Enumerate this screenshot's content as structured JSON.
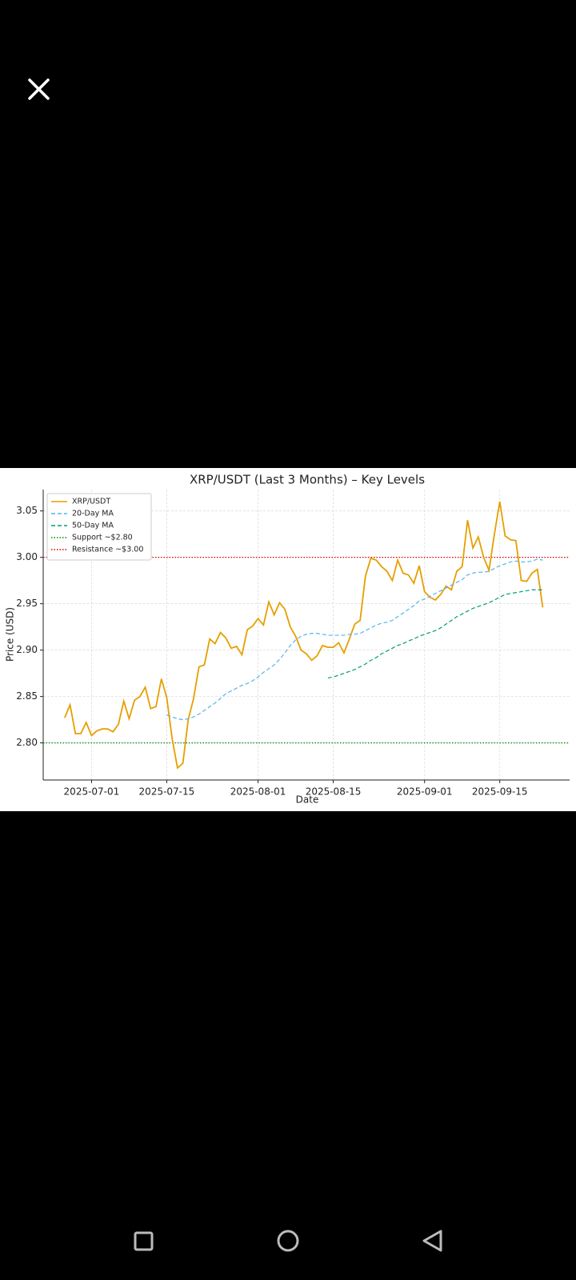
{
  "chart_data": {
    "type": "line",
    "title": "XRP/USDT (Last 3 Months) – Key Levels",
    "xlabel": "Date",
    "ylabel": "Price (USD)",
    "x": [
      "2025-06-26",
      "2025-06-27",
      "2025-06-28",
      "2025-06-29",
      "2025-06-30",
      "2025-07-01",
      "2025-07-02",
      "2025-07-03",
      "2025-07-04",
      "2025-07-05",
      "2025-07-06",
      "2025-07-07",
      "2025-07-08",
      "2025-07-09",
      "2025-07-10",
      "2025-07-11",
      "2025-07-12",
      "2025-07-13",
      "2025-07-14",
      "2025-07-15",
      "2025-07-16",
      "2025-07-17",
      "2025-07-18",
      "2025-07-19",
      "2025-07-20",
      "2025-07-21",
      "2025-07-22",
      "2025-07-23",
      "2025-07-24",
      "2025-07-25",
      "2025-07-26",
      "2025-07-27",
      "2025-07-28",
      "2025-07-29",
      "2025-07-30",
      "2025-07-31",
      "2025-08-01",
      "2025-08-02",
      "2025-08-03",
      "2025-08-04",
      "2025-08-05",
      "2025-08-06",
      "2025-08-07",
      "2025-08-08",
      "2025-08-09",
      "2025-08-10",
      "2025-08-11",
      "2025-08-12",
      "2025-08-13",
      "2025-08-14",
      "2025-08-15",
      "2025-08-16",
      "2025-08-17",
      "2025-08-18",
      "2025-08-19",
      "2025-08-20",
      "2025-08-21",
      "2025-08-22",
      "2025-08-23",
      "2025-08-24",
      "2025-08-25",
      "2025-08-26",
      "2025-08-27",
      "2025-08-28",
      "2025-08-29",
      "2025-08-30",
      "2025-08-31",
      "2025-09-01",
      "2025-09-02",
      "2025-09-03",
      "2025-09-04",
      "2025-09-05",
      "2025-09-06",
      "2025-09-07",
      "2025-09-08",
      "2025-09-09",
      "2025-09-10",
      "2025-09-11",
      "2025-09-12",
      "2025-09-13",
      "2025-09-14",
      "2025-09-15",
      "2025-09-16",
      "2025-09-17",
      "2025-09-18",
      "2025-09-19",
      "2025-09-20",
      "2025-09-21",
      "2025-09-22",
      "2025-09-23"
    ],
    "series": [
      {
        "name": "XRP/USDT",
        "color": "#e69f00",
        "dash": "solid",
        "values": [
          2.827,
          2.841,
          2.81,
          2.81,
          2.822,
          2.808,
          2.813,
          2.815,
          2.815,
          2.812,
          2.82,
          2.845,
          2.826,
          2.846,
          2.85,
          2.86,
          2.837,
          2.839,
          2.869,
          2.849,
          2.805,
          2.773,
          2.778,
          2.825,
          2.848,
          2.882,
          2.884,
          2.912,
          2.907,
          2.919,
          2.913,
          2.902,
          2.904,
          2.895,
          2.922,
          2.926,
          2.934,
          2.927,
          2.952,
          2.938,
          2.951,
          2.944,
          2.925,
          2.915,
          2.9,
          2.896,
          2.889,
          2.894,
          2.905,
          2.903,
          2.903,
          2.908,
          2.897,
          2.912,
          2.928,
          2.932,
          2.98,
          2.999,
          2.997,
          2.99,
          2.985,
          2.975,
          2.997,
          2.983,
          2.981,
          2.972,
          2.991,
          2.963,
          2.957,
          2.954,
          2.96,
          2.969,
          2.965,
          2.985,
          2.99,
          3.04,
          3.01,
          3.022,
          3.0,
          2.986,
          3.025,
          3.06,
          3.023,
          3.019,
          3.018,
          2.975,
          2.974,
          2.983,
          2.987,
          2.946
        ]
      },
      {
        "name": "20-Day MA",
        "color": "#56b4e9",
        "dash": "dashed",
        "values": [
          null,
          null,
          null,
          null,
          null,
          null,
          null,
          null,
          null,
          null,
          null,
          null,
          null,
          null,
          null,
          null,
          null,
          null,
          null,
          2.83,
          2.828,
          2.826,
          2.825,
          2.826,
          2.828,
          2.831,
          2.835,
          2.839,
          2.843,
          2.848,
          2.853,
          2.856,
          2.859,
          2.862,
          2.864,
          2.867,
          2.871,
          2.876,
          2.88,
          2.884,
          2.89,
          2.897,
          2.905,
          2.911,
          2.915,
          2.917,
          2.918,
          2.918,
          2.917,
          2.916,
          2.916,
          2.916,
          2.916,
          2.917,
          2.917,
          2.918,
          2.921,
          2.924,
          2.927,
          2.929,
          2.93,
          2.932,
          2.936,
          2.94,
          2.944,
          2.948,
          2.953,
          2.955,
          2.958,
          2.961,
          2.964,
          2.967,
          2.97,
          2.973,
          2.976,
          2.981,
          2.983,
          2.984,
          2.984,
          2.985,
          2.988,
          2.991,
          2.993,
          2.995,
          2.996,
          2.995,
          2.995,
          2.996,
          2.998,
          2.997
        ]
      },
      {
        "name": "50-Day MA",
        "color": "#009e73",
        "dash": "dashed",
        "values": [
          null,
          null,
          null,
          null,
          null,
          null,
          null,
          null,
          null,
          null,
          null,
          null,
          null,
          null,
          null,
          null,
          null,
          null,
          null,
          null,
          null,
          null,
          null,
          null,
          null,
          null,
          null,
          null,
          null,
          null,
          null,
          null,
          null,
          null,
          null,
          null,
          null,
          null,
          null,
          null,
          null,
          null,
          null,
          null,
          null,
          null,
          null,
          null,
          null,
          2.87,
          2.871,
          2.873,
          2.875,
          2.877,
          2.879,
          2.882,
          2.885,
          2.889,
          2.892,
          2.896,
          2.899,
          2.902,
          2.905,
          2.907,
          2.91,
          2.912,
          2.915,
          2.917,
          2.919,
          2.921,
          2.924,
          2.928,
          2.932,
          2.936,
          2.939,
          2.942,
          2.945,
          2.947,
          2.949,
          2.951,
          2.954,
          2.957,
          2.96,
          2.961,
          2.962,
          2.963,
          2.964,
          2.965,
          2.965,
          2.965
        ]
      }
    ],
    "hlines": [
      {
        "name": "Support ~$2.80",
        "value": 2.8,
        "color": "#008a00"
      },
      {
        "name": "Resistance ~$3.00",
        "value": 3.0,
        "color": "#e00000"
      }
    ],
    "xlim": [
      "2025-06-22",
      "2025-09-28"
    ],
    "xticks": [
      "2025-07-01",
      "2025-07-15",
      "2025-08-01",
      "2025-08-15",
      "2025-09-01",
      "2025-09-15"
    ],
    "ylim": [
      2.76,
      3.073
    ],
    "yticks": [
      {
        "value": 2.8,
        "label": "2.80"
      },
      {
        "value": 2.85,
        "label": "2.85"
      },
      {
        "value": 2.9,
        "label": "2.90"
      },
      {
        "value": 2.95,
        "label": "2.95"
      },
      {
        "value": 3.0,
        "label": "3.00"
      },
      {
        "value": 3.05,
        "label": "3.05"
      }
    ],
    "grid": true,
    "legend": "upper left"
  }
}
